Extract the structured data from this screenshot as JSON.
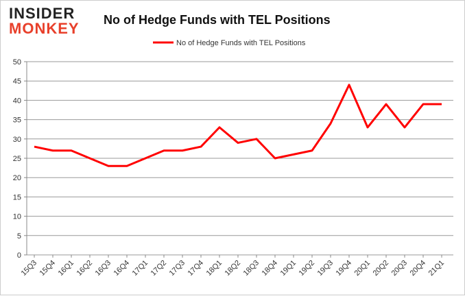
{
  "logo": {
    "line1": "INSIDER",
    "line2": "MONKEY"
  },
  "chart_data": {
    "type": "line",
    "title": "No of Hedge Funds with TEL Positions",
    "categories": [
      "15Q3",
      "15Q4",
      "16Q1",
      "16Q2",
      "16Q3",
      "16Q4",
      "17Q1",
      "17Q2",
      "17Q3",
      "17Q4",
      "18Q1",
      "18Q2",
      "18Q3",
      "18Q4",
      "19Q1",
      "19Q2",
      "19Q3",
      "19Q4",
      "20Q1",
      "20Q2",
      "20Q3",
      "20Q4",
      "21Q1"
    ],
    "series": [
      {
        "name": "No of Hedge Funds with TEL Positions",
        "color": "#ff0000",
        "values": [
          28,
          27,
          27,
          25,
          23,
          23,
          25,
          27,
          27,
          28,
          33,
          29,
          30,
          25,
          26,
          27,
          34,
          44,
          33,
          39,
          33,
          39,
          39
        ]
      }
    ],
    "ylim": [
      0,
      50
    ],
    "yticks": [
      0,
      5,
      10,
      15,
      20,
      25,
      30,
      35,
      40,
      45,
      50
    ],
    "grid": true,
    "legend": "top"
  }
}
